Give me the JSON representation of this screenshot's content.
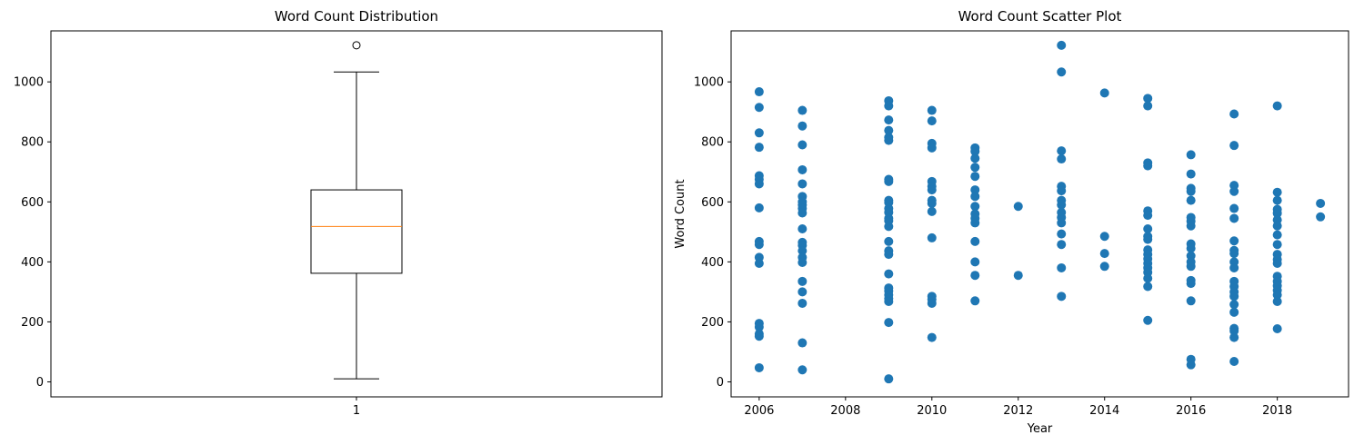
{
  "chart_data": [
    {
      "type": "box",
      "title": "Word Count Distribution",
      "xlabel": "",
      "ylabel": "",
      "categories": [
        "1"
      ],
      "box": {
        "min": 10,
        "q1": 362,
        "median": 518,
        "q3": 640,
        "max": 1033,
        "outliers": [
          1122
        ]
      },
      "ylim": [
        -50,
        1170
      ],
      "xlim": [
        0.5,
        1.5
      ],
      "yticks": [
        0,
        200,
        400,
        600,
        800,
        1000
      ],
      "colors": {
        "box": "#000000",
        "median": "#ff7f0e"
      }
    },
    {
      "type": "scatter",
      "title": "Word Count Scatter Plot",
      "xlabel": "Year",
      "ylabel": "Word Count",
      "xlim": [
        2005.35,
        2019.65
      ],
      "ylim": [
        -50,
        1170
      ],
      "xticks": [
        2006,
        2008,
        2010,
        2012,
        2014,
        2016,
        2018
      ],
      "yticks": [
        0,
        200,
        400,
        600,
        800,
        1000
      ],
      "colors": {
        "points": "#1f77b4"
      },
      "points": [
        [
          2006,
          967
        ],
        [
          2006,
          915
        ],
        [
          2006,
          830
        ],
        [
          2006,
          782
        ],
        [
          2006,
          687
        ],
        [
          2006,
          675
        ],
        [
          2006,
          660
        ],
        [
          2006,
          580
        ],
        [
          2006,
          468
        ],
        [
          2006,
          458
        ],
        [
          2006,
          415
        ],
        [
          2006,
          395
        ],
        [
          2006,
          195
        ],
        [
          2006,
          183
        ],
        [
          2006,
          160
        ],
        [
          2006,
          152
        ],
        [
          2006,
          47
        ],
        [
          2007,
          905
        ],
        [
          2007,
          853
        ],
        [
          2007,
          790
        ],
        [
          2007,
          707
        ],
        [
          2007,
          660
        ],
        [
          2007,
          618
        ],
        [
          2007,
          600
        ],
        [
          2007,
          590
        ],
        [
          2007,
          578
        ],
        [
          2007,
          563
        ],
        [
          2007,
          510
        ],
        [
          2007,
          465
        ],
        [
          2007,
          455
        ],
        [
          2007,
          437
        ],
        [
          2007,
          415
        ],
        [
          2007,
          398
        ],
        [
          2007,
          335
        ],
        [
          2007,
          300
        ],
        [
          2007,
          262
        ],
        [
          2007,
          130
        ],
        [
          2007,
          40
        ],
        [
          2009,
          937
        ],
        [
          2009,
          920
        ],
        [
          2009,
          873
        ],
        [
          2009,
          838
        ],
        [
          2009,
          815
        ],
        [
          2009,
          805
        ],
        [
          2009,
          675
        ],
        [
          2009,
          668
        ],
        [
          2009,
          605
        ],
        [
          2009,
          598
        ],
        [
          2009,
          578
        ],
        [
          2009,
          565
        ],
        [
          2009,
          545
        ],
        [
          2009,
          537
        ],
        [
          2009,
          518
        ],
        [
          2009,
          468
        ],
        [
          2009,
          437
        ],
        [
          2009,
          425
        ],
        [
          2009,
          360
        ],
        [
          2009,
          313
        ],
        [
          2009,
          303
        ],
        [
          2009,
          290
        ],
        [
          2009,
          278
        ],
        [
          2009,
          268
        ],
        [
          2009,
          198
        ],
        [
          2009,
          10
        ],
        [
          2010,
          905
        ],
        [
          2010,
          870
        ],
        [
          2010,
          795
        ],
        [
          2010,
          780
        ],
        [
          2010,
          668
        ],
        [
          2010,
          652
        ],
        [
          2010,
          640
        ],
        [
          2010,
          605
        ],
        [
          2010,
          595
        ],
        [
          2010,
          568
        ],
        [
          2010,
          480
        ],
        [
          2010,
          285
        ],
        [
          2010,
          275
        ],
        [
          2010,
          262
        ],
        [
          2010,
          148
        ],
        [
          2011,
          780
        ],
        [
          2011,
          768
        ],
        [
          2011,
          745
        ],
        [
          2011,
          715
        ],
        [
          2011,
          685
        ],
        [
          2011,
          640
        ],
        [
          2011,
          618
        ],
        [
          2011,
          585
        ],
        [
          2011,
          560
        ],
        [
          2011,
          545
        ],
        [
          2011,
          530
        ],
        [
          2011,
          468
        ],
        [
          2011,
          400
        ],
        [
          2011,
          355
        ],
        [
          2011,
          270
        ],
        [
          2012,
          585
        ],
        [
          2012,
          355
        ],
        [
          2013,
          1122
        ],
        [
          2013,
          1033
        ],
        [
          2013,
          770
        ],
        [
          2013,
          743
        ],
        [
          2013,
          652
        ],
        [
          2013,
          637
        ],
        [
          2013,
          605
        ],
        [
          2013,
          590
        ],
        [
          2013,
          565
        ],
        [
          2013,
          548
        ],
        [
          2013,
          530
        ],
        [
          2013,
          493
        ],
        [
          2013,
          458
        ],
        [
          2013,
          380
        ],
        [
          2013,
          285
        ],
        [
          2014,
          963
        ],
        [
          2014,
          485
        ],
        [
          2014,
          428
        ],
        [
          2014,
          385
        ],
        [
          2015,
          945
        ],
        [
          2015,
          920
        ],
        [
          2015,
          730
        ],
        [
          2015,
          720
        ],
        [
          2015,
          570
        ],
        [
          2015,
          555
        ],
        [
          2015,
          510
        ],
        [
          2015,
          485
        ],
        [
          2015,
          475
        ],
        [
          2015,
          440
        ],
        [
          2015,
          425
        ],
        [
          2015,
          410
        ],
        [
          2015,
          395
        ],
        [
          2015,
          380
        ],
        [
          2015,
          365
        ],
        [
          2015,
          345
        ],
        [
          2015,
          318
        ],
        [
          2015,
          205
        ],
        [
          2016,
          757
        ],
        [
          2016,
          693
        ],
        [
          2016,
          645
        ],
        [
          2016,
          635
        ],
        [
          2016,
          605
        ],
        [
          2016,
          548
        ],
        [
          2016,
          535
        ],
        [
          2016,
          520
        ],
        [
          2016,
          460
        ],
        [
          2016,
          445
        ],
        [
          2016,
          420
        ],
        [
          2016,
          400
        ],
        [
          2016,
          385
        ],
        [
          2016,
          338
        ],
        [
          2016,
          328
        ],
        [
          2016,
          270
        ],
        [
          2016,
          75
        ],
        [
          2016,
          57
        ],
        [
          2017,
          893
        ],
        [
          2017,
          788
        ],
        [
          2017,
          655
        ],
        [
          2017,
          635
        ],
        [
          2017,
          578
        ],
        [
          2017,
          545
        ],
        [
          2017,
          470
        ],
        [
          2017,
          438
        ],
        [
          2017,
          428
        ],
        [
          2017,
          400
        ],
        [
          2017,
          380
        ],
        [
          2017,
          335
        ],
        [
          2017,
          318
        ],
        [
          2017,
          300
        ],
        [
          2017,
          285
        ],
        [
          2017,
          258
        ],
        [
          2017,
          232
        ],
        [
          2017,
          178
        ],
        [
          2017,
          170
        ],
        [
          2017,
          148
        ],
        [
          2017,
          68
        ],
        [
          2018,
          920
        ],
        [
          2018,
          632
        ],
        [
          2018,
          605
        ],
        [
          2018,
          575
        ],
        [
          2018,
          562
        ],
        [
          2018,
          540
        ],
        [
          2018,
          520
        ],
        [
          2018,
          490
        ],
        [
          2018,
          458
        ],
        [
          2018,
          425
        ],
        [
          2018,
          408
        ],
        [
          2018,
          395
        ],
        [
          2018,
          352
        ],
        [
          2018,
          335
        ],
        [
          2018,
          320
        ],
        [
          2018,
          305
        ],
        [
          2018,
          290
        ],
        [
          2018,
          268
        ],
        [
          2018,
          177
        ],
        [
          2019,
          595
        ],
        [
          2019,
          550
        ]
      ]
    }
  ]
}
